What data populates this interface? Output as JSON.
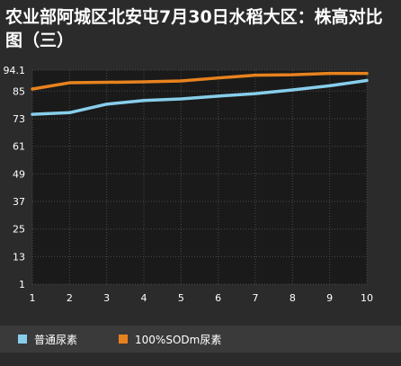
{
  "chart_data": {
    "type": "line",
    "title": "农业部阿城区北安屯7月30日水稻大区：株高对比图（三）",
    "x": [
      1,
      2,
      3,
      4,
      5,
      6,
      7,
      8,
      9,
      10
    ],
    "x_tick_labels": [
      "1",
      "2",
      "3",
      "4",
      "5",
      "6",
      "7",
      "8",
      "9",
      "10"
    ],
    "y_tick_values": [
      94.1,
      85,
      73,
      61,
      49,
      37,
      25,
      13,
      1
    ],
    "y_tick_labels": [
      "94.1",
      "85",
      "73",
      "61",
      "49",
      "37",
      "25",
      "13",
      "1"
    ],
    "ylim": [
      1,
      94.1
    ],
    "grid": true,
    "legend_position": "bottom",
    "series": [
      {
        "name": "普通尿素",
        "color": "#87ceeb",
        "values": [
          74.9,
          75.6,
          79.3,
          80.9,
          81.6,
          82.8,
          83.9,
          85.5,
          87.3,
          89.6
        ]
      },
      {
        "name": "100%SODm尿素",
        "color": "#e8821e",
        "values": [
          85.9,
          88.6,
          88.8,
          89.0,
          89.4,
          90.7,
          91.9,
          92.1,
          92.7,
          92.7
        ]
      }
    ]
  }
}
